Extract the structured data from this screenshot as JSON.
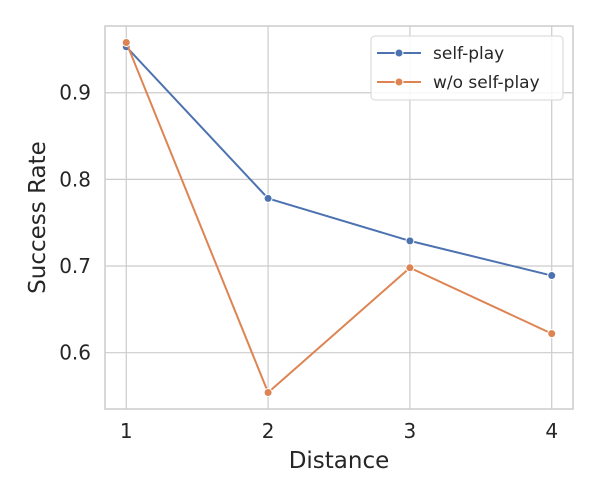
{
  "chart_data": {
    "type": "line",
    "title": "",
    "xlabel": "Distance",
    "ylabel": "Success Rate",
    "x": [
      1,
      2,
      3,
      4
    ],
    "x_tick_labels": [
      "1",
      "2",
      "3",
      "4"
    ],
    "y_tick_labels": [
      "0.6",
      "0.7",
      "0.8",
      "0.9"
    ],
    "y_ticks": [
      0.6,
      0.7,
      0.8,
      0.9
    ],
    "xlim": [
      0.85,
      4.15
    ],
    "ylim": [
      0.535,
      0.977
    ],
    "grid": true,
    "legend_position": "top-right",
    "series": [
      {
        "name": "self-play",
        "color": "#4c72b0",
        "values": [
          0.953,
          0.778,
          0.729,
          0.689
        ]
      },
      {
        "name": "w/o self-play",
        "color": "#dd8452",
        "values": [
          0.958,
          0.554,
          0.698,
          0.622
        ]
      }
    ]
  }
}
